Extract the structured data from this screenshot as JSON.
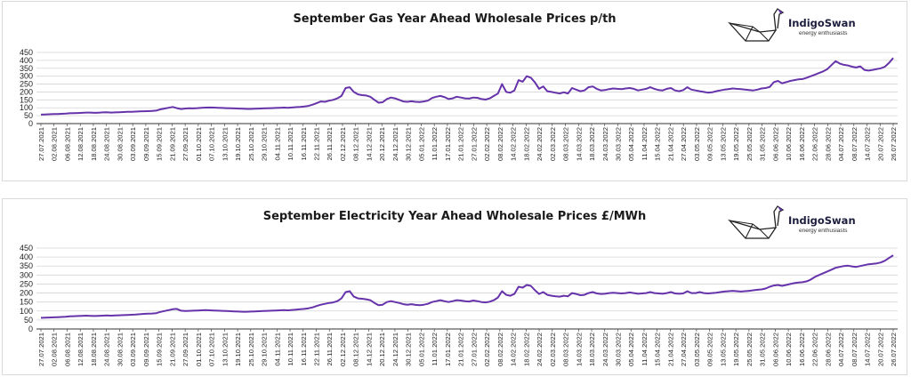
{
  "logo": {
    "brand": "IndigoSwan",
    "tagline": "energy enthusiasts",
    "icon": "swan-origami-icon"
  },
  "colors": {
    "line": "#6633aa",
    "grid": "#d4d4d4",
    "axis": "#333333"
  },
  "chart_data": [
    {
      "type": "line",
      "title": "September Gas Year Ahead Wholesale Prices p/th",
      "xlabel": "",
      "ylabel": "",
      "ylim": [
        0,
        450
      ],
      "yticks": [
        0,
        50,
        100,
        150,
        200,
        250,
        300,
        350,
        400,
        450
      ],
      "grid": true,
      "x_tick_labels": [
        "27.07.2021",
        "02.08.2021",
        "06.08.2021",
        "12.08.2021",
        "18.08.2021",
        "24.08.2021",
        "30.08.2021",
        "03.09.2021",
        "09.09.2021",
        "15.09.2021",
        "21.09.2021",
        "27.09.2021",
        "01.10.2021",
        "07.10.2021",
        "13.10.2021",
        "19.10.2021",
        "25.10.2021",
        "29.10.2021",
        "04.11.2021",
        "10.11.2021",
        "16.11.2021",
        "22.11.2021",
        "26.11.2021",
        "02.12.2021",
        "08.12.2021",
        "14.12.2021",
        "20.12.2021",
        "24.12.2021",
        "30.12.2021",
        "05.01.2022",
        "11.01.2022",
        "17.01.2022",
        "21.01.2022",
        "27.01.2022",
        "02.02.2022",
        "08.02.2022",
        "14.02.2022",
        "18.02.2022",
        "24.02.2022",
        "02.03.2022",
        "08.03.2022",
        "14.03.2022",
        "18.03.2022",
        "24.03.2022",
        "30.03.2022",
        "05.04.2022",
        "11.04.2022",
        "15.04.2022",
        "21.04.2022",
        "27.04.2022",
        "03.05.2022",
        "09.05.2022",
        "13.05.2022",
        "19.05.2022",
        "25.05.2022",
        "31.05.2022",
        "06.06.2022",
        "10.06.2022",
        "16.06.2022",
        "22.06.2022",
        "28.06.2022",
        "04.07.2022",
        "08.07.2022",
        "14.07.2022",
        "20.07.2022",
        "26.07.2022"
      ],
      "series": [
        {
          "name": "",
          "values": [
            57,
            58,
            59,
            60,
            61,
            62,
            63,
            65,
            66,
            67,
            68,
            70,
            70,
            68,
            69,
            71,
            72,
            70,
            71,
            72,
            73,
            74,
            75,
            76,
            77,
            78,
            79,
            80,
            82,
            90,
            95,
            100,
            105,
            98,
            92,
            95,
            97,
            96,
            98,
            100,
            101,
            102,
            101,
            100,
            99,
            98,
            97,
            96,
            95,
            94,
            93,
            93,
            94,
            95,
            96,
            97,
            98,
            99,
            100,
            101,
            100,
            102,
            104,
            106,
            108,
            112,
            120,
            130,
            140,
            138,
            145,
            150,
            160,
            175,
            225,
            230,
            200,
            185,
            180,
            178,
            170,
            150,
            132,
            135,
            155,
            165,
            160,
            150,
            140,
            138,
            141,
            138,
            136,
            140,
            145,
            162,
            170,
            175,
            168,
            155,
            160,
            170,
            165,
            160,
            158,
            165,
            163,
            155,
            152,
            160,
            175,
            190,
            250,
            200,
            195,
            210,
            275,
            265,
            300,
            290,
            260,
            220,
            235,
            205,
            200,
            195,
            190,
            198,
            190,
            225,
            215,
            205,
            210,
            230,
            235,
            220,
            210,
            212,
            218,
            222,
            220,
            218,
            222,
            225,
            220,
            210,
            215,
            220,
            230,
            220,
            212,
            210,
            220,
            225,
            210,
            205,
            212,
            230,
            215,
            210,
            205,
            200,
            196,
            198,
            205,
            210,
            215,
            218,
            222,
            220,
            218,
            215,
            212,
            210,
            215,
            222,
            225,
            232,
            262,
            270,
            255,
            262,
            270,
            275,
            280,
            282,
            290,
            300,
            310,
            320,
            330,
            345,
            370,
            395,
            380,
            372,
            368,
            360,
            355,
            362,
            340,
            335,
            340,
            345,
            350,
            360,
            385,
            415
          ]
        }
      ]
    },
    {
      "type": "line",
      "title": "September Electricity Year Ahead Wholesale Prices £/MWh",
      "xlabel": "",
      "ylabel": "",
      "ylim": [
        0,
        450
      ],
      "yticks": [
        0,
        50,
        100,
        150,
        200,
        250,
        300,
        350,
        400,
        450
      ],
      "grid": true,
      "x_tick_labels": [
        "27.07.2021",
        "02.08.2021",
        "06.08.2021",
        "12.08.2021",
        "18.08.2021",
        "24.08.2021",
        "30.08.2021",
        "03.09.2021",
        "09.09.2021",
        "15.09.2021",
        "21.09.2021",
        "27.09.2021",
        "01.10.2021",
        "07.10.2021",
        "13.10.2021",
        "19.10.2021",
        "25.10.2021",
        "29.10.2021",
        "04.11.2021",
        "10.11.2021",
        "16.11.2021",
        "22.11.2021",
        "26.11.2021",
        "02.12.2021",
        "08.12.2021",
        "14.12.2021",
        "20.12.2021",
        "24.12.2021",
        "30.12.2021",
        "05.01.2022",
        "11.01.2022",
        "17.01.2022",
        "21.01.2022",
        "27.01.2022",
        "02.02.2022",
        "08.02.2022",
        "14.02.2022",
        "18.02.2022",
        "24.02.2022",
        "02.03.2022",
        "08.03.2022",
        "14.03.2022",
        "18.03.2022",
        "24.03.2022",
        "30.03.2022",
        "05.04.2022",
        "11.04.2022",
        "15.04.2022",
        "21.04.2022",
        "27.04.2022",
        "03.05.2022",
        "09.05.2022",
        "13.05.2022",
        "19.05.2022",
        "25.05.2022",
        "31.05.2022",
        "06.06.2022",
        "10.06.2022",
        "16.06.2022",
        "22.06.2022",
        "28.06.2022",
        "04.07.2022",
        "08.07.2022",
        "14.07.2022",
        "20.07.2022",
        "26.07.2022"
      ],
      "series": [
        {
          "name": "",
          "values": [
            62,
            63,
            64,
            65,
            66,
            67,
            68,
            70,
            71,
            72,
            73,
            74,
            73,
            72,
            73,
            74,
            75,
            74,
            75,
            76,
            77,
            78,
            79,
            80,
            82,
            84,
            85,
            86,
            88,
            95,
            100,
            105,
            110,
            112,
            102,
            100,
            101,
            102,
            103,
            104,
            105,
            104,
            103,
            102,
            101,
            100,
            99,
            98,
            97,
            96,
            96,
            97,
            98,
            99,
            100,
            101,
            102,
            103,
            104,
            105,
            104,
            106,
            108,
            110,
            112,
            115,
            120,
            128,
            135,
            140,
            145,
            148,
            155,
            170,
            205,
            210,
            180,
            170,
            168,
            165,
            160,
            145,
            132,
            135,
            150,
            155,
            150,
            145,
            138,
            135,
            138,
            134,
            132,
            135,
            140,
            150,
            155,
            160,
            155,
            150,
            155,
            160,
            158,
            155,
            153,
            158,
            155,
            150,
            148,
            152,
            160,
            175,
            210,
            190,
            185,
            195,
            235,
            230,
            245,
            240,
            215,
            195,
            205,
            190,
            185,
            182,
            180,
            185,
            182,
            200,
            195,
            188,
            190,
            200,
            205,
            198,
            195,
            196,
            200,
            202,
            200,
            198,
            200,
            203,
            200,
            196,
            198,
            200,
            205,
            200,
            198,
            196,
            200,
            205,
            198,
            196,
            198,
            210,
            200,
            200,
            205,
            200,
            198,
            200,
            202,
            205,
            208,
            210,
            212,
            210,
            208,
            210,
            212,
            215,
            218,
            220,
            225,
            235,
            242,
            245,
            240,
            245,
            250,
            255,
            258,
            260,
            265,
            275,
            290,
            300,
            310,
            320,
            330,
            340,
            345,
            350,
            352,
            348,
            345,
            350,
            355,
            360,
            362,
            365,
            370,
            380,
            395,
            410
          ]
        }
      ]
    }
  ]
}
